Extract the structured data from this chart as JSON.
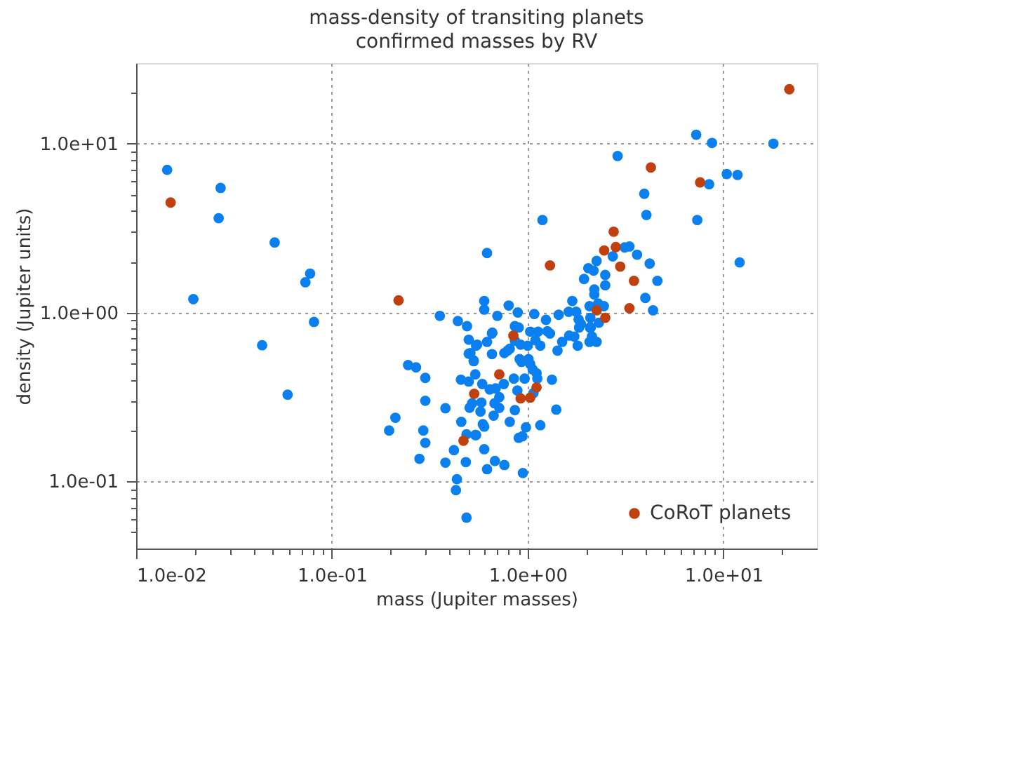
{
  "chart_data": {
    "type": "scatter",
    "title": "mass-density of transiting planets",
    "subtitle": "confirmed masses by RV",
    "xlabel": "mass (Jupiter masses)",
    "ylabel": "density (Jupiter units)",
    "log": "xy",
    "grid": true,
    "marker": "circle",
    "legend": "bottom right",
    "xlim": [
      0.01,
      30
    ],
    "ylim": [
      0.04,
      30
    ],
    "xticks": [
      {
        "value": 0.01,
        "label": "1.0e-02"
      },
      {
        "value": 0.02,
        "label": null
      },
      {
        "value": 0.03,
        "label": null
      },
      {
        "value": 0.04,
        "label": null
      },
      {
        "value": 0.05,
        "label": null
      },
      {
        "value": 0.06,
        "label": null
      },
      {
        "value": 0.07,
        "label": null
      },
      {
        "value": 0.08,
        "label": null
      },
      {
        "value": 0.09,
        "label": null
      },
      {
        "value": 0.1,
        "label": "1.0e-01"
      },
      {
        "value": 0.2,
        "label": null
      },
      {
        "value": 0.3,
        "label": null
      },
      {
        "value": 0.4,
        "label": null
      },
      {
        "value": 0.5,
        "label": null
      },
      {
        "value": 0.6,
        "label": null
      },
      {
        "value": 0.7,
        "label": null
      },
      {
        "value": 0.8,
        "label": null
      },
      {
        "value": 0.9,
        "label": null
      },
      {
        "value": 1,
        "label": "1.0e+00"
      },
      {
        "value": 2,
        "label": null
      },
      {
        "value": 3,
        "label": null
      },
      {
        "value": 4,
        "label": null
      },
      {
        "value": 5,
        "label": null
      },
      {
        "value": 6,
        "label": null
      },
      {
        "value": 7,
        "label": null
      },
      {
        "value": 8,
        "label": null
      },
      {
        "value": 9,
        "label": null
      },
      {
        "value": 10,
        "label": "1.0e+01"
      },
      {
        "value": 20,
        "label": null
      }
    ],
    "yticks": [
      {
        "value": 0.05,
        "label": null
      },
      {
        "value": 0.06,
        "label": null
      },
      {
        "value": 0.07,
        "label": null
      },
      {
        "value": 0.08,
        "label": null
      },
      {
        "value": 0.09,
        "label": null
      },
      {
        "value": 0.1,
        "label": "1.0e-01"
      },
      {
        "value": 0.2,
        "label": null
      },
      {
        "value": 0.3,
        "label": null
      },
      {
        "value": 0.4,
        "label": null
      },
      {
        "value": 0.5,
        "label": null
      },
      {
        "value": 0.6,
        "label": null
      },
      {
        "value": 0.7,
        "label": null
      },
      {
        "value": 0.8,
        "label": null
      },
      {
        "value": 0.9,
        "label": null
      },
      {
        "value": 1,
        "label": "1.0e+00"
      },
      {
        "value": 2,
        "label": null
      },
      {
        "value": 3,
        "label": null
      },
      {
        "value": 4,
        "label": null
      },
      {
        "value": 5,
        "label": null
      },
      {
        "value": 6,
        "label": null
      },
      {
        "value": 7,
        "label": null
      },
      {
        "value": 8,
        "label": null
      },
      {
        "value": 9,
        "label": null
      },
      {
        "value": 10,
        "label": "1.0e+01"
      },
      {
        "value": 20,
        "label": null
      }
    ],
    "series": [
      {
        "color": "#0a80f0",
        "x": [
          0.0144,
          0.027,
          0.0264,
          0.051,
          0.0774,
          0.0732,
          0.0196,
          0.081,
          0.356,
          0.44,
          0.49,
          0.5,
          0.044,
          0.0594,
          0.245,
          0.269,
          0.3,
          0.3,
          0.211,
          0.196,
          0.293,
          0.3,
          0.28,
          0.38,
          0.456,
          0.5,
          0.53,
          0.5,
          0.545,
          0.54,
          0.52,
          0.505,
          0.458,
          0.487,
          0.54,
          0.42,
          0.38,
          0.483,
          0.435,
          0.43,
          0.487,
          0.552,
          0.62,
          0.657,
          0.51,
          0.53,
          0.657,
          0.76,
          0.79,
          0.81,
          0.86,
          0.9,
          0.92,
          0.91,
          0.93,
          1.03,
          1.13,
          1.26,
          1.095,
          1.16,
          1.0,
          1.01,
          1.03,
          1.06,
          1.11,
          1.12,
          0.965,
          0.85,
          1.33,
          1.42,
          1.5,
          1.63,
          1.73,
          1.8,
          2.07,
          2.13,
          2.25,
          1.83,
          2.08,
          0.586,
          0.64,
          0.686,
          0.755,
          0.886,
          0.716,
          0.677,
          0.58,
          0.574,
          0.716,
          0.67,
          0.86,
          1.07,
          1.4,
          0.81,
          0.59,
          0.6,
          0.98,
          1.16,
          0.545,
          0.9,
          0.94,
          0.6,
          0.68,
          0.62,
          0.76,
          0.945,
          7.26,
          8.74,
          18.0,
          2.88,
          10.4,
          11.8,
          8.45,
          3.94,
          4.04,
          7.35,
          1.19,
          3.13,
          3.31,
          2.72,
          3.62,
          0.62,
          2.25,
          4.2,
          12.1,
          2.04,
          2.17,
          1.94,
          2.49,
          2.49,
          4.6,
          2.19,
          2.19,
          3.99,
          1.69,
          2.07,
          2.45,
          2.29,
          4.37,
          1.77,
          1.62,
          1.44,
          1.24,
          1.08,
          0.89,
          0.86,
          0.7,
          0.8,
          0.6,
          0.6,
          0.66,
          1.3,
          1.82,
          1.87,
          2.09,
          2.1,
          2.31
        ],
        "values": [
          7.0,
          5.47,
          3.62,
          2.6,
          1.7,
          1.51,
          1.2,
          0.88,
          0.955,
          0.89,
          0.83,
          0.69,
          0.64,
          0.326,
          0.488,
          0.473,
          0.41,
          0.3,
          0.238,
          0.2,
          0.2,
          0.169,
          0.136,
          0.271,
          0.4,
          0.39,
          0.52,
          0.57,
          0.636,
          0.43,
          0.29,
          0.273,
          0.225,
          0.19,
          0.188,
          0.153,
          0.129,
          0.13,
          0.103,
          0.0887,
          0.061,
          0.645,
          0.67,
          0.75,
          0.575,
          0.515,
          0.567,
          0.575,
          0.595,
          0.61,
          0.68,
          0.815,
          0.645,
          0.53,
          0.51,
          0.77,
          0.77,
          0.775,
          0.685,
          0.636,
          0.636,
          0.53,
          0.495,
          0.46,
          0.437,
          0.406,
          0.406,
          0.406,
          0.4,
          0.595,
          0.67,
          0.73,
          0.72,
          0.636,
          0.67,
          0.72,
          0.67,
          0.815,
          0.815,
          0.377,
          0.35,
          0.355,
          0.377,
          0.345,
          0.315,
          0.29,
          0.293,
          0.259,
          0.272,
          0.245,
          0.264,
          0.333,
          0.266,
          0.225,
          0.218,
          0.211,
          0.209,
          0.215,
          0.188,
          0.181,
          0.185,
          0.155,
          0.132,
          0.118,
          0.125,
          0.112,
          11.3,
          10.1,
          10.0,
          8.45,
          6.61,
          6.53,
          5.75,
          5.05,
          3.78,
          3.53,
          3.53,
          2.43,
          2.46,
          2.15,
          2.2,
          2.25,
          2.02,
          1.95,
          1.98,
          1.83,
          1.77,
          1.58,
          1.67,
          1.45,
          1.54,
          1.37,
          1.28,
          1.22,
          1.17,
          1.09,
          1.09,
          1.13,
          1.03,
          1.01,
          1.01,
          0.97,
          0.905,
          0.98,
          1.0,
          0.83,
          0.955,
          1.1,
          1.17,
          1.04,
          0.76,
          0.75,
          0.91,
          0.857,
          0.93,
          0.815,
          0.87
        ]
      },
      {
        "name": "CoRoT planets",
        "color": "#c04010",
        "x": [
          0.015,
          0.219,
          0.533,
          0.47,
          0.845,
          0.716,
          1.11,
          0.92,
          1.03,
          21.7,
          4.26,
          7.6,
          2.75,
          2.82,
          2.46,
          1.3,
          2.97,
          3.49,
          2.25,
          3.31,
          2.49
        ],
        "values": [
          4.48,
          1.18,
          0.33,
          0.174,
          0.73,
          0.43,
          0.36,
          0.31,
          0.313,
          21.0,
          7.23,
          5.9,
          3.01,
          2.44,
          2.33,
          1.9,
          1.87,
          1.54,
          1.03,
          1.06,
          0.93
        ]
      }
    ]
  }
}
